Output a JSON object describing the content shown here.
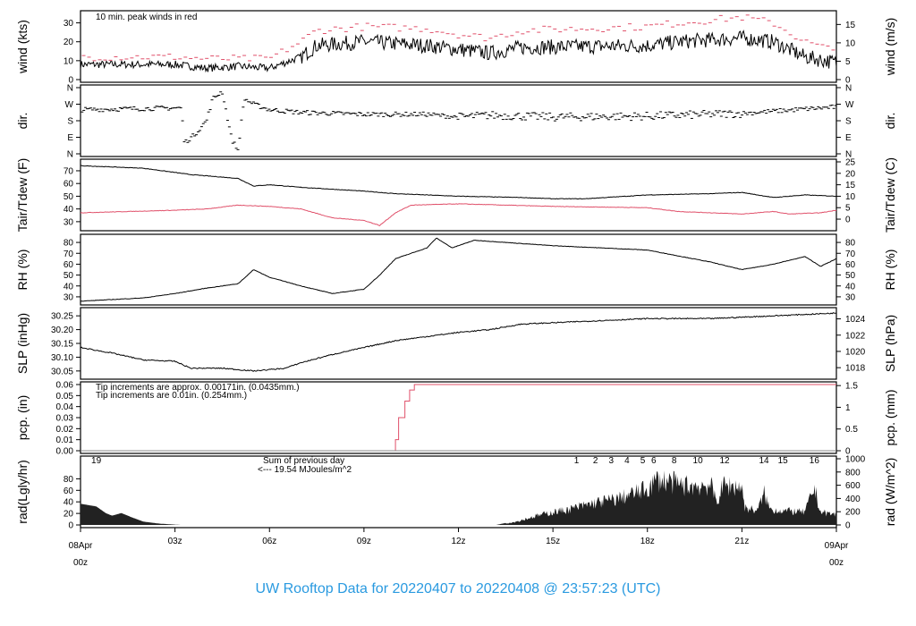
{
  "title": "UW Rooftop Data for 20220407  to  20220408 @ 23:57:23  (UTC)",
  "colors": {
    "main": "#000000",
    "red": "#e0506a",
    "blue": "#2a9ae0",
    "purple": "#a030e0",
    "date": "#e04060"
  },
  "x_axis": {
    "unit": "hours UTC",
    "range": [
      0,
      24
    ],
    "ticks": [
      {
        "h": 3,
        "label": "03z"
      },
      {
        "h": 6,
        "label": "06z"
      },
      {
        "h": 9,
        "label": "09z"
      },
      {
        "h": 12,
        "label": "12z"
      },
      {
        "h": 15,
        "label": "15z"
      },
      {
        "h": 18,
        "label": "18z"
      },
      {
        "h": 21,
        "label": "21z"
      }
    ],
    "start_label": [
      "08Apr",
      "00z"
    ],
    "end_label": [
      "09Apr",
      "00z"
    ]
  },
  "chart_data": [
    {
      "type": "line",
      "id": "wind",
      "ylabel": "wind (kts)",
      "ylabel_right": "wind (m/s)",
      "ylim": [
        0,
        35
      ],
      "yticks": [
        0,
        10,
        20,
        30
      ],
      "yticks_right": [
        {
          "v": 0,
          "label": "0"
        },
        {
          "v": 9.72,
          "label": "5"
        },
        {
          "v": 19.44,
          "label": "10"
        },
        {
          "v": 29.16,
          "label": "15"
        }
      ],
      "annotation": "10 min. peak winds in red",
      "series": [
        {
          "style": "line",
          "color": "#000000",
          "points": [
            [
              0,
              8
            ],
            [
              3,
              8
            ],
            [
              4,
              6
            ],
            [
              5,
              7
            ],
            [
              6,
              6
            ],
            [
              6.5,
              9
            ],
            [
              7,
              12
            ],
            [
              7.5,
              18
            ],
            [
              9,
              20
            ],
            [
              11,
              18
            ],
            [
              12,
              16
            ],
            [
              13,
              14
            ],
            [
              14,
              17
            ],
            [
              18,
              18
            ],
            [
              19,
              20
            ],
            [
              21,
              22
            ],
            [
              22,
              20
            ],
            [
              23,
              12
            ],
            [
              24,
              9
            ]
          ]
        },
        {
          "style": "peaks",
          "color": "#e0506a",
          "points": [
            [
              0,
              12
            ],
            [
              3,
              12
            ],
            [
              4,
              11
            ],
            [
              5,
              11
            ],
            [
              6,
              11
            ],
            [
              7,
              20
            ],
            [
              7.5,
              26
            ],
            [
              9,
              28
            ],
            [
              11,
              27
            ],
            [
              12,
              24
            ],
            [
              13,
              22
            ],
            [
              14,
              26
            ],
            [
              18,
              28
            ],
            [
              19,
              30
            ],
            [
              21,
              33
            ],
            [
              22,
              30
            ],
            [
              23,
              20
            ],
            [
              24,
              15
            ]
          ]
        }
      ]
    },
    {
      "type": "scatter",
      "id": "dir",
      "ylabel": "dir.",
      "ylabel_right": "dir.",
      "ylim": [
        0,
        360
      ],
      "yticks_labels": [
        {
          "v": 0,
          "label": "N"
        },
        {
          "v": 90,
          "label": "E"
        },
        {
          "v": 180,
          "label": "S"
        },
        {
          "v": 270,
          "label": "W"
        },
        {
          "v": 360,
          "label": "N"
        }
      ],
      "series": [
        {
          "style": "dashes",
          "color": "#000000",
          "points": [
            [
              0,
              240
            ],
            [
              3.2,
              250
            ],
            [
              3.3,
              60
            ],
            [
              3.6,
              100
            ],
            [
              4,
              180
            ],
            [
              4.2,
              300
            ],
            [
              4.5,
              340
            ],
            [
              4.8,
              80
            ],
            [
              5,
              20
            ],
            [
              5.2,
              300
            ],
            [
              5.5,
              270
            ],
            [
              6,
              240
            ],
            [
              7,
              225
            ],
            [
              9,
              215
            ],
            [
              11,
              215
            ],
            [
              12,
              200
            ],
            [
              13,
              210
            ],
            [
              15,
              200
            ],
            [
              18,
              205
            ],
            [
              21,
              220
            ],
            [
              24,
              255
            ]
          ]
        }
      ]
    },
    {
      "type": "line",
      "id": "temp",
      "ylabel": "Tair/Tdew (F)",
      "ylabel_right": "Tair/Tdew (C)",
      "ylim": [
        25,
        77
      ],
      "yticks": [
        30,
        40,
        50,
        60,
        70
      ],
      "yticks_right": [
        {
          "v": 32,
          "label": "0"
        },
        {
          "v": 41,
          "label": "5"
        },
        {
          "v": 50,
          "label": "10"
        },
        {
          "v": 59,
          "label": "15"
        },
        {
          "v": 68,
          "label": "20"
        },
        {
          "v": 77,
          "label": "25"
        }
      ],
      "series": [
        {
          "name": "Tair",
          "style": "line",
          "color": "#000000",
          "points": [
            [
              0,
              74
            ],
            [
              2,
              72
            ],
            [
              3.5,
              67
            ],
            [
              5,
              64
            ],
            [
              5.5,
              58
            ],
            [
              6,
              59
            ],
            [
              7,
              57
            ],
            [
              9,
              54
            ],
            [
              10,
              52
            ],
            [
              12,
              50
            ],
            [
              14,
              49
            ],
            [
              15,
              48
            ],
            [
              16,
              48
            ],
            [
              18,
              51
            ],
            [
              20,
              52
            ],
            [
              21,
              53
            ],
            [
              21.5,
              51
            ],
            [
              22,
              49
            ],
            [
              23,
              51
            ],
            [
              24,
              50
            ]
          ]
        },
        {
          "name": "Tdew",
          "style": "line",
          "color": "#e0506a",
          "points": [
            [
              0,
              37
            ],
            [
              3,
              39
            ],
            [
              4,
              40
            ],
            [
              5,
              43
            ],
            [
              6,
              42
            ],
            [
              7,
              40
            ],
            [
              8,
              33
            ],
            [
              9,
              31
            ],
            [
              9.5,
              27
            ],
            [
              10,
              37
            ],
            [
              10.5,
              43
            ],
            [
              12,
              44
            ],
            [
              15,
              42
            ],
            [
              18,
              41
            ],
            [
              19,
              38
            ],
            [
              21,
              36
            ],
            [
              22,
              38
            ],
            [
              22.5,
              36
            ],
            [
              23.5,
              37
            ],
            [
              24,
              39
            ]
          ]
        }
      ]
    },
    {
      "type": "line",
      "id": "rh",
      "ylabel": "RH (%)",
      "ylabel_right": "RH (%)",
      "ylim": [
        25,
        85
      ],
      "yticks": [
        30,
        40,
        50,
        60,
        70,
        80
      ],
      "series": [
        {
          "style": "line",
          "color": "#000000",
          "points": [
            [
              0,
              26
            ],
            [
              2,
              29
            ],
            [
              3,
              33
            ],
            [
              4,
              38
            ],
            [
              5,
              42
            ],
            [
              5.5,
              55
            ],
            [
              6,
              48
            ],
            [
              7,
              40
            ],
            [
              8,
              33
            ],
            [
              9,
              37
            ],
            [
              9.5,
              50
            ],
            [
              10,
              65
            ],
            [
              11,
              75
            ],
            [
              11.3,
              84
            ],
            [
              11.8,
              75
            ],
            [
              12.5,
              82
            ],
            [
              14,
              79
            ],
            [
              15,
              77
            ],
            [
              18,
              73
            ],
            [
              20,
              62
            ],
            [
              21,
              55
            ],
            [
              22,
              60
            ],
            [
              23,
              67
            ],
            [
              23.5,
              58
            ],
            [
              24,
              65
            ]
          ]
        }
      ]
    },
    {
      "type": "line",
      "id": "slp",
      "ylabel": "SLP (inHg)",
      "ylabel_right": "SLP (hPa)",
      "ylim": [
        30.03,
        30.27
      ],
      "yticks": [
        30.05,
        30.1,
        30.15,
        30.2,
        30.25
      ],
      "ytick_format": 2,
      "yticks_right": [
        {
          "v": 30.062,
          "label": "1018"
        },
        {
          "v": 30.121,
          "label": "1020"
        },
        {
          "v": 30.18,
          "label": "1022"
        },
        {
          "v": 30.239,
          "label": "1024"
        }
      ],
      "series": [
        {
          "style": "line",
          "color": "#000000",
          "points": [
            [
              0,
              30.135
            ],
            [
              1,
              30.115
            ],
            [
              2,
              30.09
            ],
            [
              3,
              30.085
            ],
            [
              3.5,
              30.06
            ],
            [
              4.5,
              30.06
            ],
            [
              5.5,
              30.05
            ],
            [
              6.5,
              30.06
            ],
            [
              7,
              30.08
            ],
            [
              8,
              30.11
            ],
            [
              10,
              30.16
            ],
            [
              12,
              30.19
            ],
            [
              13,
              30.2
            ],
            [
              14,
              30.22
            ],
            [
              16,
              30.23
            ],
            [
              18,
              30.24
            ],
            [
              20,
              30.24
            ],
            [
              22,
              30.25
            ],
            [
              23,
              30.255
            ],
            [
              24,
              30.26
            ]
          ]
        }
      ]
    },
    {
      "type": "line",
      "id": "pcp",
      "ylabel": "pcp. (in)",
      "ylabel_right": "pcp. (mm)",
      "ylim": [
        0,
        0.06
      ],
      "yticks": [
        0,
        0.01,
        0.02,
        0.03,
        0.04,
        0.05,
        0.06
      ],
      "ytick_format": 2,
      "yticks_right": [
        {
          "v": 0,
          "label": "0"
        },
        {
          "v": 0.01969,
          "label": "0.5"
        },
        {
          "v": 0.03937,
          "label": "1"
        },
        {
          "v": 0.05906,
          "label": "1.5"
        }
      ],
      "annotations": [
        {
          "text": "Tip increments are approx. 0.00171in. (0.0435mm.)",
          "color": "#e0506a"
        },
        {
          "text": "Tip increments are 0.01in. (0.254mm.)",
          "color": "#2a9ae0"
        }
      ],
      "series": [
        {
          "style": "step",
          "color": "#e0506a",
          "points": [
            [
              0,
              0
            ],
            [
              9.95,
              0
            ],
            [
              10,
              0.01
            ],
            [
              10.1,
              0.03
            ],
            [
              10.3,
              0.045
            ],
            [
              10.45,
              0.055
            ],
            [
              10.6,
              0.06
            ],
            [
              24,
              0.06
            ]
          ]
        },
        {
          "style": "line",
          "color": "#888888",
          "points": [
            [
              0,
              0
            ],
            [
              24,
              0
            ]
          ]
        }
      ]
    },
    {
      "type": "area",
      "id": "rad",
      "ylabel": "rad(Lgly/hr)",
      "ylabel_right": "rad (W/m^2)",
      "ylim": [
        0,
        1000
      ],
      "yticks_left": [
        {
          "v": 0,
          "label": "0"
        },
        {
          "v": 174,
          "label": "20"
        },
        {
          "v": 349,
          "label": "40"
        },
        {
          "v": 523,
          "label": "60"
        },
        {
          "v": 697,
          "label": "80"
        }
      ],
      "yticks": [
        0,
        200,
        400,
        600,
        800,
        1000
      ],
      "annotations": [
        {
          "text": "Sum of previous day",
          "color": "#a030e0"
        },
        {
          "text": "<--- 19.54 MJoules/m^2",
          "color": "#a030e0"
        }
      ],
      "hour_markers": [
        {
          "h": 0.5,
          "label": "19"
        },
        {
          "h": 15.75,
          "label": "1"
        },
        {
          "h": 16.35,
          "label": "2"
        },
        {
          "h": 16.85,
          "label": "3"
        },
        {
          "h": 17.35,
          "label": "4"
        },
        {
          "h": 17.85,
          "label": "5"
        },
        {
          "h": 18.2,
          "label": "6"
        },
        {
          "h": 18.85,
          "label": "8"
        },
        {
          "h": 19.6,
          "label": "10"
        },
        {
          "h": 20.45,
          "label": "12"
        },
        {
          "h": 21.7,
          "label": "14"
        },
        {
          "h": 22.3,
          "label": "15"
        },
        {
          "h": 23.3,
          "label": "16"
        }
      ],
      "series": [
        {
          "style": "area",
          "color": "#222222",
          "points": [
            [
              0,
              320
            ],
            [
              0.5,
              280
            ],
            [
              0.8,
              180
            ],
            [
              1,
              140
            ],
            [
              1.3,
              180
            ],
            [
              1.6,
              120
            ],
            [
              2,
              50
            ],
            [
              2.5,
              20
            ],
            [
              3,
              5
            ],
            [
              3.2,
              0
            ],
            [
              13.2,
              0
            ],
            [
              13.8,
              60
            ],
            [
              14.5,
              180
            ],
            [
              15,
              250
            ],
            [
              15.5,
              300
            ],
            [
              16,
              380
            ],
            [
              16.5,
              450
            ],
            [
              17,
              500
            ],
            [
              17.5,
              600
            ],
            [
              18,
              700
            ],
            [
              18.3,
              880
            ],
            [
              18.7,
              850
            ],
            [
              19,
              780
            ],
            [
              19.5,
              760
            ],
            [
              20,
              780
            ],
            [
              20.2,
              450
            ],
            [
              20.4,
              770
            ],
            [
              21,
              740
            ],
            [
              21.1,
              330
            ],
            [
              21.5,
              280
            ],
            [
              21.7,
              620
            ],
            [
              21.9,
              300
            ],
            [
              22.5,
              270
            ],
            [
              23,
              250
            ],
            [
              23.3,
              720
            ],
            [
              23.5,
              250
            ],
            [
              24,
              200
            ]
          ]
        }
      ]
    }
  ]
}
